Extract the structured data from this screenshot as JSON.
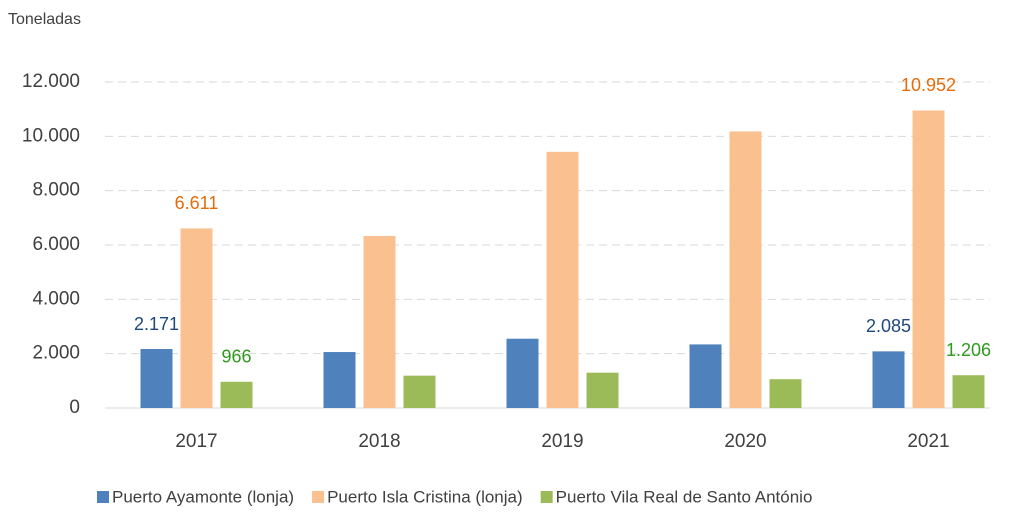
{
  "chart_data": {
    "type": "bar",
    "y_axis_label": "Toneladas",
    "categories": [
      "2017",
      "2018",
      "2019",
      "2020",
      "2021"
    ],
    "series": [
      {
        "name": "Puerto Ayamonte (lonja)",
        "color": "#4f81bd",
        "label_color": "#1f497d",
        "values": [
          2171,
          2060,
          2550,
          2340,
          2085
        ],
        "value_labels": [
          "2.171",
          null,
          null,
          null,
          "2.085"
        ]
      },
      {
        "name": "Puerto Isla Cristina (lonja)",
        "color": "#fac090",
        "label_color": "#e46c0a",
        "values": [
          6611,
          6330,
          9430,
          10180,
          10952
        ],
        "value_labels": [
          "6.611",
          null,
          null,
          null,
          "10.952"
        ]
      },
      {
        "name": "Puerto Vila Real de Santo António",
        "color": "#9bbb59",
        "label_color": "#2e9a1e",
        "values": [
          966,
          1190,
          1300,
          1060,
          1206
        ],
        "value_labels": [
          "966",
          null,
          null,
          null,
          "1.206"
        ]
      }
    ],
    "ylim": [
      0,
      12000
    ],
    "yticks": [
      0,
      {
        "value": 2000,
        "label": "2.000"
      },
      {
        "value": 4000,
        "label": "4.000"
      },
      {
        "value": 6000,
        "label": "6.000"
      },
      {
        "value": 8000,
        "label": "8.000"
      },
      {
        "value": 10000,
        "label": "10.000"
      },
      {
        "value": 12000,
        "label": "12.000"
      }
    ],
    "grid": true,
    "legend": "bottom"
  }
}
